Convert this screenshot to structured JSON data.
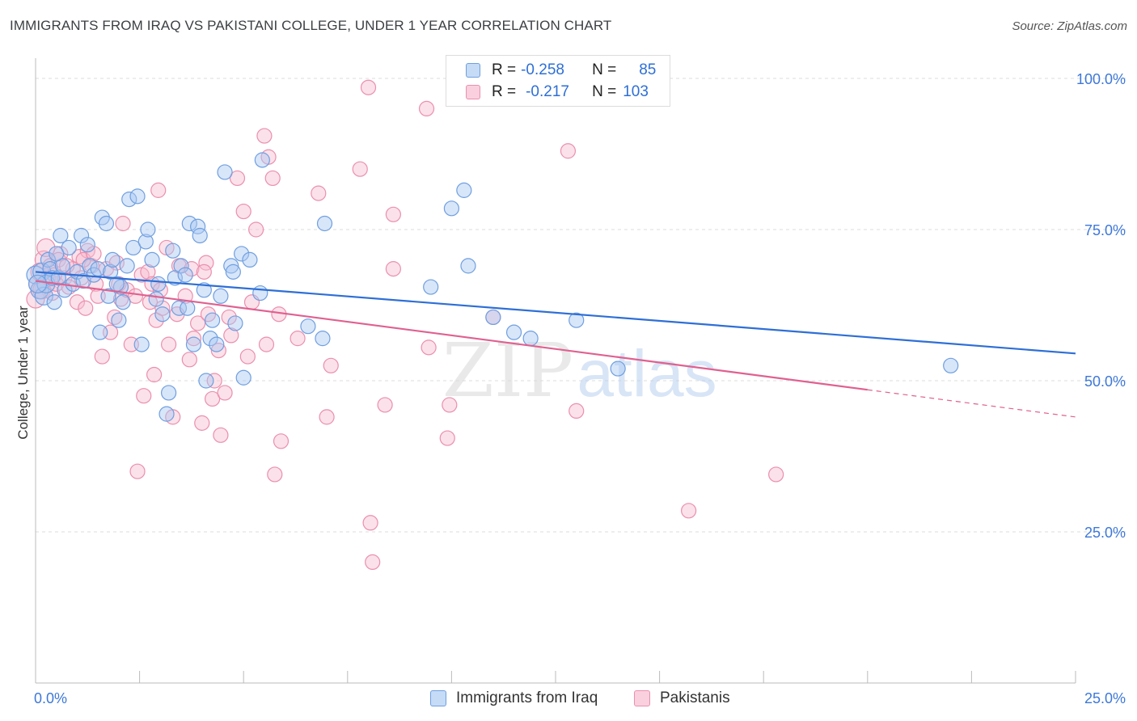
{
  "header": {
    "title": "IMMIGRANTS FROM IRAQ VS PAKISTANI COLLEGE, UNDER 1 YEAR CORRELATION CHART",
    "source": "Source: ZipAtlas.com"
  },
  "watermark": {
    "zip": "ZIP",
    "atlas": "atlas"
  },
  "legend_stats": {
    "r_label": "R =",
    "n_label": "N =",
    "series1": {
      "r": "-0.258",
      "n": "85"
    },
    "series2": {
      "r": "-0.217",
      "n": "103"
    }
  },
  "colors": {
    "blue_fill": "#a9c8f2",
    "blue_stroke": "#6f9fe0",
    "blue_line": "#2e6fd6",
    "pink_fill": "#f6bcd0",
    "pink_stroke": "#eb8fae",
    "pink_line": "#e0608f",
    "grid": "#dddddd",
    "tick_label": "#3d78d8"
  },
  "chart_data": {
    "type": "scatter",
    "title": "IMMIGRANTS FROM IRAQ VS PAKISTANI COLLEGE, UNDER 1 YEAR CORRELATION CHART",
    "xlabel": "",
    "ylabel": "College, Under 1 year",
    "xlim": [
      0,
      25
    ],
    "ylim": [
      0,
      102
    ],
    "x_tick_labels": [
      "0.0%",
      "25.0%"
    ],
    "y_tick_labels": [
      "25.0%",
      "50.0%",
      "75.0%",
      "100.0%"
    ],
    "y_ticks": [
      25,
      50,
      75,
      100
    ],
    "x_minor_ticks": [
      2.5,
      5,
      7.5,
      10,
      12.5,
      15,
      17.5,
      20,
      22.5,
      25
    ],
    "grid": true,
    "series": [
      {
        "name": "Immigrants from Iraq",
        "color": "blue",
        "trend": {
          "x": [
            0,
            25
          ],
          "y": [
            68,
            54.5
          ],
          "dashed_from": null
        },
        "points": [
          [
            0.0,
            67.5
          ],
          [
            0.1,
            65
          ],
          [
            0.15,
            68
          ],
          [
            0.2,
            64
          ],
          [
            0.25,
            66
          ],
          [
            0.3,
            70
          ],
          [
            0.35,
            68.5
          ],
          [
            0.4,
            67
          ],
          [
            0.45,
            63
          ],
          [
            0.55,
            67
          ],
          [
            0.6,
            74
          ],
          [
            0.65,
            69
          ],
          [
            0.7,
            65
          ],
          [
            0.8,
            72
          ],
          [
            0.9,
            66
          ],
          [
            1.0,
            68
          ],
          [
            1.1,
            74
          ],
          [
            1.15,
            66.5
          ],
          [
            1.25,
            72.5
          ],
          [
            1.3,
            69
          ],
          [
            1.4,
            67.5
          ],
          [
            1.5,
            68.5
          ],
          [
            1.55,
            58
          ],
          [
            1.6,
            77
          ],
          [
            1.7,
            76
          ],
          [
            1.75,
            64
          ],
          [
            1.8,
            68
          ],
          [
            1.85,
            70
          ],
          [
            2.0,
            60
          ],
          [
            2.05,
            65.5
          ],
          [
            2.1,
            63
          ],
          [
            2.2,
            69
          ],
          [
            2.25,
            80
          ],
          [
            2.35,
            72
          ],
          [
            2.45,
            80.5
          ],
          [
            2.55,
            56
          ],
          [
            2.65,
            73
          ],
          [
            2.7,
            75
          ],
          [
            2.8,
            70
          ],
          [
            2.9,
            63.5
          ],
          [
            2.95,
            66
          ],
          [
            3.05,
            61
          ],
          [
            3.15,
            44.5
          ],
          [
            3.2,
            48
          ],
          [
            3.3,
            71.5
          ],
          [
            3.35,
            67
          ],
          [
            3.45,
            62
          ],
          [
            3.5,
            69
          ],
          [
            3.6,
            67.5
          ],
          [
            3.65,
            62
          ],
          [
            3.7,
            76
          ],
          [
            3.8,
            56
          ],
          [
            3.9,
            75.5
          ],
          [
            3.95,
            74
          ],
          [
            4.05,
            65
          ],
          [
            4.1,
            50
          ],
          [
            4.2,
            57
          ],
          [
            4.25,
            60
          ],
          [
            4.35,
            56
          ],
          [
            4.45,
            64
          ],
          [
            4.55,
            84.5
          ],
          [
            4.7,
            69
          ],
          [
            4.75,
            68
          ],
          [
            4.8,
            59.5
          ],
          [
            4.95,
            71
          ],
          [
            5.0,
            50.5
          ],
          [
            5.15,
            70
          ],
          [
            5.4,
            64.5
          ],
          [
            5.45,
            86.5
          ],
          [
            6.55,
            59
          ],
          [
            6.9,
            57
          ],
          [
            6.95,
            76
          ],
          [
            9.5,
            65.5
          ],
          [
            10.0,
            78.5
          ],
          [
            10.3,
            81.5
          ],
          [
            10.4,
            69
          ],
          [
            11.0,
            60.5
          ],
          [
            11.5,
            58
          ],
          [
            11.9,
            57
          ],
          [
            13.0,
            60
          ],
          [
            14.0,
            52
          ],
          [
            22.0,
            52.5
          ],
          [
            0.05,
            66
          ],
          [
            0.5,
            71
          ],
          [
            1.95,
            66
          ]
        ]
      },
      {
        "name": "Pakistanis",
        "color": "pink",
        "trend": {
          "x": [
            0,
            25
          ],
          "y": [
            66.5,
            44
          ],
          "dashed_from": 20
        },
        "points": [
          [
            0.0,
            63.5
          ],
          [
            0.05,
            66
          ],
          [
            0.1,
            68
          ],
          [
            0.15,
            65
          ],
          [
            0.2,
            70
          ],
          [
            0.3,
            67
          ],
          [
            0.35,
            69
          ],
          [
            0.4,
            64.5
          ],
          [
            0.5,
            66
          ],
          [
            0.6,
            71
          ],
          [
            0.7,
            67
          ],
          [
            0.8,
            65.5
          ],
          [
            0.9,
            68.5
          ],
          [
            1.0,
            63
          ],
          [
            1.05,
            70.5
          ],
          [
            1.1,
            67
          ],
          [
            1.2,
            62
          ],
          [
            1.25,
            71.5
          ],
          [
            1.35,
            69
          ],
          [
            1.45,
            66
          ],
          [
            1.5,
            64
          ],
          [
            1.6,
            54
          ],
          [
            1.7,
            68.5
          ],
          [
            1.8,
            58
          ],
          [
            1.9,
            60.5
          ],
          [
            1.95,
            69.5
          ],
          [
            2.05,
            63.5
          ],
          [
            2.1,
            76
          ],
          [
            2.2,
            65
          ],
          [
            2.3,
            56
          ],
          [
            2.4,
            64
          ],
          [
            2.45,
            35
          ],
          [
            2.55,
            67.5
          ],
          [
            2.6,
            47.5
          ],
          [
            2.7,
            68
          ],
          [
            2.8,
            66
          ],
          [
            2.85,
            51
          ],
          [
            2.9,
            60
          ],
          [
            2.95,
            81.5
          ],
          [
            3.05,
            62
          ],
          [
            3.15,
            72
          ],
          [
            3.2,
            56
          ],
          [
            3.3,
            44
          ],
          [
            3.4,
            61
          ],
          [
            3.45,
            69
          ],
          [
            3.6,
            64
          ],
          [
            3.7,
            53.5
          ],
          [
            3.75,
            68.5
          ],
          [
            3.8,
            57
          ],
          [
            3.9,
            59.5
          ],
          [
            4.0,
            43
          ],
          [
            4.1,
            69.5
          ],
          [
            4.15,
            61
          ],
          [
            4.25,
            47
          ],
          [
            4.3,
            50
          ],
          [
            4.4,
            55
          ],
          [
            4.45,
            41
          ],
          [
            4.55,
            48
          ],
          [
            4.65,
            60.5
          ],
          [
            4.7,
            57.5
          ],
          [
            4.85,
            83.5
          ],
          [
            5.0,
            78
          ],
          [
            5.1,
            54
          ],
          [
            5.3,
            75
          ],
          [
            5.5,
            90.5
          ],
          [
            5.55,
            56
          ],
          [
            5.6,
            87
          ],
          [
            5.7,
            83.5
          ],
          [
            5.75,
            34.5
          ],
          [
            5.85,
            61
          ],
          [
            5.9,
            40
          ],
          [
            6.3,
            57
          ],
          [
            6.8,
            81
          ],
          [
            7.0,
            44
          ],
          [
            7.1,
            52.5
          ],
          [
            7.8,
            85
          ],
          [
            8.0,
            98.5
          ],
          [
            8.05,
            26.5
          ],
          [
            8.1,
            20
          ],
          [
            8.4,
            46
          ],
          [
            8.6,
            77.5
          ],
          [
            8.6,
            68.5
          ],
          [
            9.4,
            95
          ],
          [
            9.45,
            55.5
          ],
          [
            9.9,
            40.5
          ],
          [
            9.95,
            46
          ],
          [
            11.0,
            60.5
          ],
          [
            11.5,
            100
          ],
          [
            12.8,
            88
          ],
          [
            13.0,
            45
          ],
          [
            15.7,
            28.5
          ],
          [
            17.8,
            34.5
          ],
          [
            0.25,
            72
          ],
          [
            1.15,
            70
          ],
          [
            2.0,
            66
          ],
          [
            0.45,
            67.5
          ],
          [
            0.55,
            70
          ],
          [
            3.0,
            65
          ],
          [
            1.4,
            71
          ],
          [
            2.75,
            63
          ],
          [
            4.05,
            68
          ],
          [
            0.75,
            69
          ],
          [
            5.2,
            63
          ]
        ]
      }
    ],
    "annotations": []
  },
  "bottom_legend": {
    "items": [
      "Immigrants from Iraq",
      "Pakistanis"
    ]
  }
}
